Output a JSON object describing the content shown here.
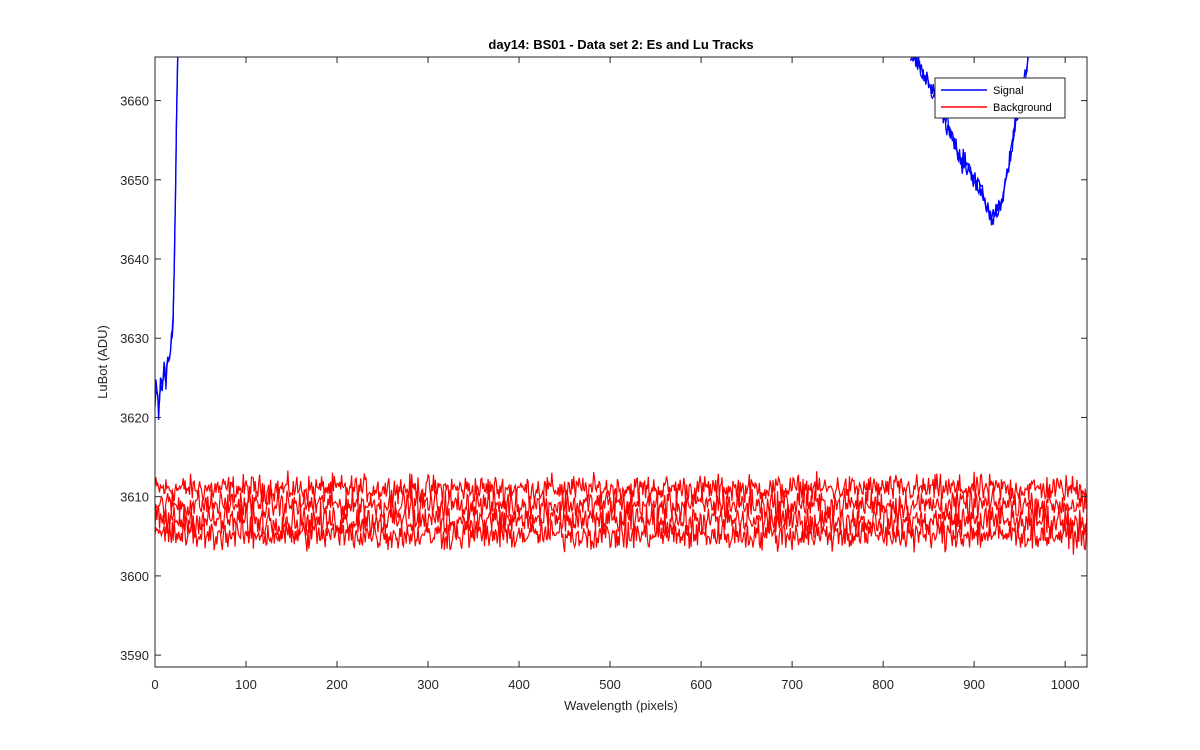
{
  "chart_data": {
    "type": "line",
    "title": "day14: BS01 - Data set 2: Es and Lu Tracks",
    "xlabel": "Wavelength (pixels)",
    "ylabel": "LuBot (ADU)",
    "xlim": [
      0,
      1024
    ],
    "ylim": [
      3588.5,
      3665.5
    ],
    "x_ticks": [
      0,
      100,
      200,
      300,
      400,
      500,
      600,
      700,
      800,
      900,
      1000
    ],
    "y_ticks": [
      3590,
      3600,
      3610,
      3620,
      3630,
      3640,
      3650,
      3660
    ],
    "grid": false,
    "legend_position": "top-right",
    "series": [
      {
        "name": "Signal",
        "color": "#0000ff",
        "segments": [
          {
            "x": [
              0,
              2,
              4,
              6,
              8,
              10,
              12,
              14,
              16,
              18,
              20,
              21,
              22,
              23,
              24,
              25
            ],
            "y": [
              3622,
              3624,
              3621,
              3625,
              3623,
              3626,
              3624,
              3628,
              3627,
              3630,
              3633,
              3638,
              3645,
              3652,
              3660,
              3666
            ]
          },
          {
            "x": [
              830,
              840,
              850,
              860,
              870,
              880,
              890,
              900,
              910,
              915,
              920,
              925,
              930,
              935,
              940,
              945,
              950,
              955,
              960
            ],
            "y": [
              3666,
              3664,
              3662,
              3660,
              3657,
              3654,
              3652,
              3650,
              3648,
              3646,
              3645,
              3646,
              3647,
              3650,
              3653,
              3657,
              3660,
              3663,
              3666
            ]
          }
        ]
      },
      {
        "name": "Background",
        "color": "#ff0000",
        "band": {
          "x_range": [
            0,
            1024
          ],
          "y_min": 3599.3,
          "y_max": 3615.2
        },
        "tracks": [
          {
            "level": 3611.0,
            "noise": 1.6
          },
          {
            "level": 3609.0,
            "noise": 1.7
          },
          {
            "level": 3607.0,
            "noise": 1.8
          },
          {
            "level": 3605.2,
            "noise": 1.8
          }
        ]
      }
    ]
  }
}
